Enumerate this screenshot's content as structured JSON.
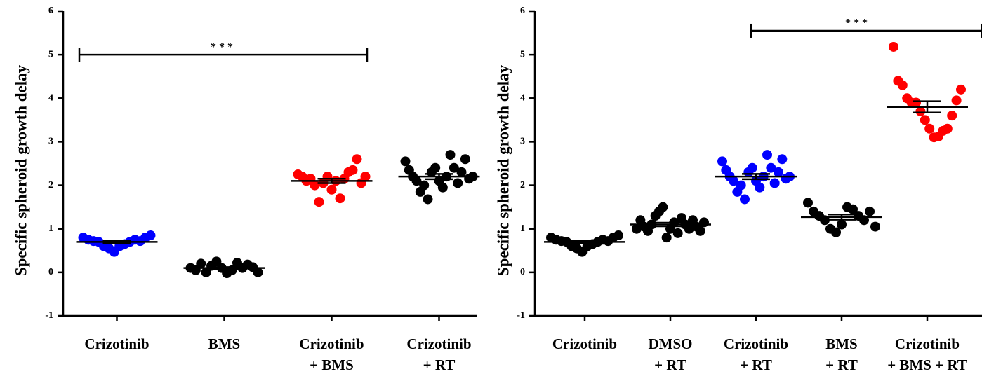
{
  "chart_data": [
    {
      "type": "scatter",
      "ylabel": "Specific spheroid growth delay",
      "ylim": [
        -1,
        6
      ],
      "yticks": [
        -1,
        0,
        1,
        2,
        3,
        4,
        5,
        6
      ],
      "categories": [
        [
          "Crizotinib"
        ],
        [
          "BMS"
        ],
        [
          "Crizotinib",
          "+ BMS"
        ],
        [
          "Crizotinib",
          "+ RT"
        ]
      ],
      "groups": [
        {
          "color": "#0000ff",
          "values": [
            0.8,
            0.75,
            0.72,
            0.7,
            0.6,
            0.55,
            0.47,
            0.6,
            0.65,
            0.7,
            0.75,
            0.72,
            0.8,
            0.85
          ],
          "mean": 0.7,
          "sem": 0.03
        },
        {
          "color": "#000000",
          "values": [
            0.1,
            0.05,
            0.2,
            0.0,
            0.15,
            0.25,
            0.1,
            -0.02,
            0.05,
            0.22,
            0.1,
            0.18,
            0.12,
            0.0
          ],
          "mean": 0.1,
          "sem": 0.02
        },
        {
          "color": "#ff0000",
          "values": [
            2.25,
            2.2,
            2.1,
            2.15,
            2.0,
            1.62,
            2.05,
            2.2,
            1.9,
            2.1,
            1.7,
            2.15,
            2.3,
            2.35,
            2.6,
            2.05,
            2.2
          ],
          "mean": 2.1,
          "sem": 0.05
        },
        {
          "color": "#000000",
          "values": [
            2.55,
            2.35,
            2.2,
            2.1,
            1.85,
            2.0,
            1.68,
            2.3,
            2.4,
            2.1,
            1.95,
            2.2,
            2.7,
            2.4,
            2.05,
            2.3,
            2.6,
            2.15,
            2.2
          ],
          "mean": 2.2,
          "sem": 0.06
        }
      ],
      "annotation": {
        "text": "***",
        "y": 5
      }
    },
    {
      "type": "scatter",
      "ylabel": "Specific spheroid growth delay",
      "ylim": [
        -1,
        6
      ],
      "yticks": [
        -1,
        0,
        1,
        2,
        3,
        4,
        5,
        6
      ],
      "categories": [
        [
          "Crizotinib"
        ],
        [
          "DMSO",
          "+ RT"
        ],
        [
          "Crizotinib",
          "+ RT"
        ],
        [
          "BMS",
          "+ RT"
        ],
        [
          "Crizotinib",
          "+ BMS + RT"
        ]
      ],
      "groups": [
        {
          "color": "#000000",
          "values": [
            0.8,
            0.75,
            0.72,
            0.7,
            0.6,
            0.55,
            0.47,
            0.6,
            0.65,
            0.7,
            0.75,
            0.72,
            0.8,
            0.85
          ],
          "mean": 0.7,
          "sem": 0.03
        },
        {
          "color": "#000000",
          "values": [
            1.0,
            1.2,
            1.05,
            0.95,
            1.1,
            1.3,
            1.4,
            1.5,
            0.8,
            1.0,
            1.15,
            0.9,
            1.25,
            1.1,
            1.0,
            1.2,
            1.05,
            0.95,
            1.15
          ],
          "mean": 1.1,
          "sem": 0.04
        },
        {
          "color": "#0000ff",
          "values": [
            2.55,
            2.35,
            2.2,
            2.1,
            1.85,
            2.0,
            1.68,
            2.3,
            2.4,
            2.1,
            1.95,
            2.2,
            2.7,
            2.4,
            2.05,
            2.3,
            2.6,
            2.15,
            2.2
          ],
          "mean": 2.2,
          "sem": 0.06
        },
        {
          "color": "#000000",
          "values": [
            1.6,
            1.4,
            1.3,
            1.2,
            1.0,
            0.92,
            1.1,
            1.5,
            1.45,
            1.3,
            1.2,
            1.4,
            1.05
          ],
          "mean": 1.27,
          "sem": 0.06
        },
        {
          "color": "#ff0000",
          "values": [
            5.18,
            4.4,
            4.3,
            4.0,
            3.9,
            3.9,
            3.7,
            3.5,
            3.3,
            3.1,
            3.12,
            3.25,
            3.3,
            3.6,
            3.95,
            4.2
          ],
          "mean": 3.8,
          "sem": 0.13
        }
      ],
      "annotation": {
        "text": "***",
        "y": 5.55
      }
    }
  ]
}
